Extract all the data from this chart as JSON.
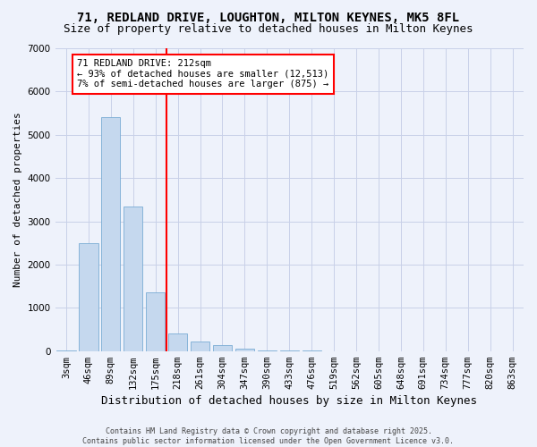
{
  "title": "71, REDLAND DRIVE, LOUGHTON, MILTON KEYNES, MK5 8FL",
  "subtitle": "Size of property relative to detached houses in Milton Keynes",
  "xlabel": "Distribution of detached houses by size in Milton Keynes",
  "ylabel": "Number of detached properties",
  "categories": [
    "3sqm",
    "46sqm",
    "89sqm",
    "132sqm",
    "175sqm",
    "218sqm",
    "261sqm",
    "304sqm",
    "347sqm",
    "390sqm",
    "433sqm",
    "476sqm",
    "519sqm",
    "562sqm",
    "605sqm",
    "648sqm",
    "691sqm",
    "734sqm",
    "777sqm",
    "820sqm",
    "863sqm"
  ],
  "values": [
    10,
    2500,
    5400,
    3350,
    1350,
    400,
    230,
    130,
    60,
    20,
    10,
    5,
    3,
    2,
    1,
    1,
    0,
    0,
    0,
    0,
    0
  ],
  "bar_color": "#c5d8ee",
  "bar_edge_color": "#7aadd4",
  "vline_color": "red",
  "vline_x": 4.5,
  "annotation_text": "71 REDLAND DRIVE: 212sqm\n← 93% of detached houses are smaller (12,513)\n7% of semi-detached houses are larger (875) →",
  "annotation_box_facecolor": "white",
  "annotation_box_edgecolor": "red",
  "footer": "Contains HM Land Registry data © Crown copyright and database right 2025.\nContains public sector information licensed under the Open Government Licence v3.0.",
  "ylim": [
    0,
    7000
  ],
  "yticks": [
    0,
    1000,
    2000,
    3000,
    4000,
    5000,
    6000,
    7000
  ],
  "bg_color": "#eef2fb",
  "grid_color": "#c8d0e8",
  "title_fontsize": 10,
  "subtitle_fontsize": 9,
  "ylabel_fontsize": 8,
  "xlabel_fontsize": 9,
  "tick_fontsize": 7.5,
  "footer_fontsize": 6,
  "annotation_fontsize": 7.5
}
